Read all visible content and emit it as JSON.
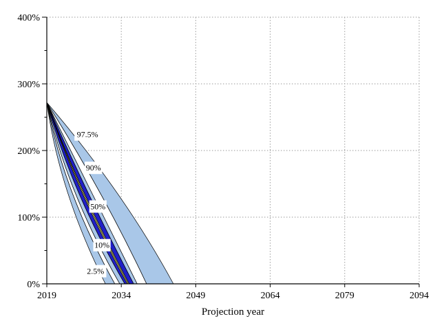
{
  "chart_data": {
    "type": "area",
    "subtype": "percentile-fan-chart",
    "title": "",
    "xlabel": "Projection year",
    "ylabel": "",
    "xlim": [
      2019,
      2094
    ],
    "ylim": [
      0,
      400
    ],
    "x_ticks": [
      2019,
      2034,
      2049,
      2064,
      2079,
      2094
    ],
    "y_ticks": [
      0,
      100,
      200,
      300,
      400
    ],
    "y_tick_suffix": "%",
    "y_minor_ticks": [
      50,
      150,
      250,
      350
    ],
    "grid": "dotted",
    "legend_position": "none",
    "apex": {
      "year": 2019,
      "value": 272
    },
    "mid_value": 137,
    "fan_boundaries": [
      {
        "name": "p2.5-outer",
        "mid_year": 2023.2,
        "end_year": 2030.8
      },
      {
        "name": "p10-line",
        "mid_year": 2024.1,
        "end_year": 2032.7
      },
      {
        "name": "band2-left",
        "mid_year": 2024.7,
        "end_year": 2033.7
      },
      {
        "name": "navy-left",
        "mid_year": 2025.4,
        "end_year": 2034.7
      },
      {
        "name": "yellow-left",
        "mid_year": 2026.1,
        "end_year": 2035.2
      },
      {
        "name": "yellow-right",
        "mid_year": 2026.5,
        "end_year": 2035.6
      },
      {
        "name": "navy-right",
        "mid_year": 2027.3,
        "end_year": 2036.5
      },
      {
        "name": "band6-right",
        "mid_year": 2028.0,
        "end_year": 2037.2
      },
      {
        "name": "p90-line",
        "mid_year": 2029.7,
        "end_year": 2039.1
      },
      {
        "name": "p97.5-outer",
        "mid_year": 2033.1,
        "end_year": 2044.5
      }
    ],
    "band_colors": [
      "#A9C7E8",
      "#FFFFFF",
      "#A9C7E8",
      "#2020C8",
      "#FFFF9E",
      "#2020C8",
      "#A9C7E8",
      "#FFFFFF",
      "#A9C7E8"
    ],
    "median_line": {
      "mid_year": 2026.3,
      "end_year": 2035.4
    },
    "percentile_labels": [
      {
        "text": "97.5%",
        "year": 2027.2,
        "value": 224
      },
      {
        "text": "90%",
        "year": 2028.4,
        "value": 174
      },
      {
        "text": "50%",
        "year": 2029.3,
        "value": 116
      },
      {
        "text": "10%",
        "year": 2030.1,
        "value": 58
      },
      {
        "text": "2.5%",
        "year": 2028.8,
        "value": 19
      }
    ],
    "colors": {
      "light_blue": "#A9C7E8",
      "navy": "#2020C8",
      "yellow": "#FFFF9E",
      "outline": "#000000",
      "grid": "#9B9B9B",
      "axis": "#000000",
      "text": "#000000",
      "background": "#FFFFFF"
    }
  }
}
